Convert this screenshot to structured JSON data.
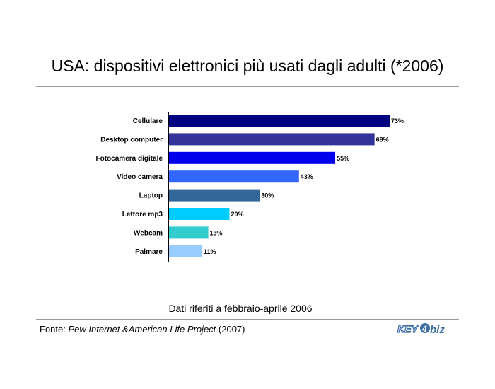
{
  "title": "USA: dispositivi elettronici più usati dagli adulti (*2006)",
  "note": "Dati riferiti a febbraio-aprile 2006",
  "source": {
    "prefix": "Fonte: ",
    "title": "Pew Internet &American Life Project",
    "year": " (2007)"
  },
  "logo": {
    "text_left": "KEY",
    "text_right": "biz",
    "digit": "4"
  },
  "chart_data": {
    "type": "bar",
    "orientation": "horizontal",
    "categories": [
      "Cellulare",
      "Desktop computer",
      "Fotocamera digitale",
      "Video camera",
      "Laptop",
      "Lettore mp3",
      "Webcam",
      "Palmare"
    ],
    "values": [
      73,
      68,
      55,
      43,
      30,
      20,
      13,
      11
    ],
    "value_labels": [
      "73%",
      "68%",
      "55%",
      "43%",
      "30%",
      "20%",
      "13%",
      "11%"
    ],
    "colors": [
      "#000080",
      "#333399",
      "#0000ee",
      "#3366ff",
      "#336699",
      "#00ccff",
      "#33cccc",
      "#99ccff"
    ],
    "xlim": [
      0,
      100
    ],
    "grid": false,
    "legend": "none"
  }
}
